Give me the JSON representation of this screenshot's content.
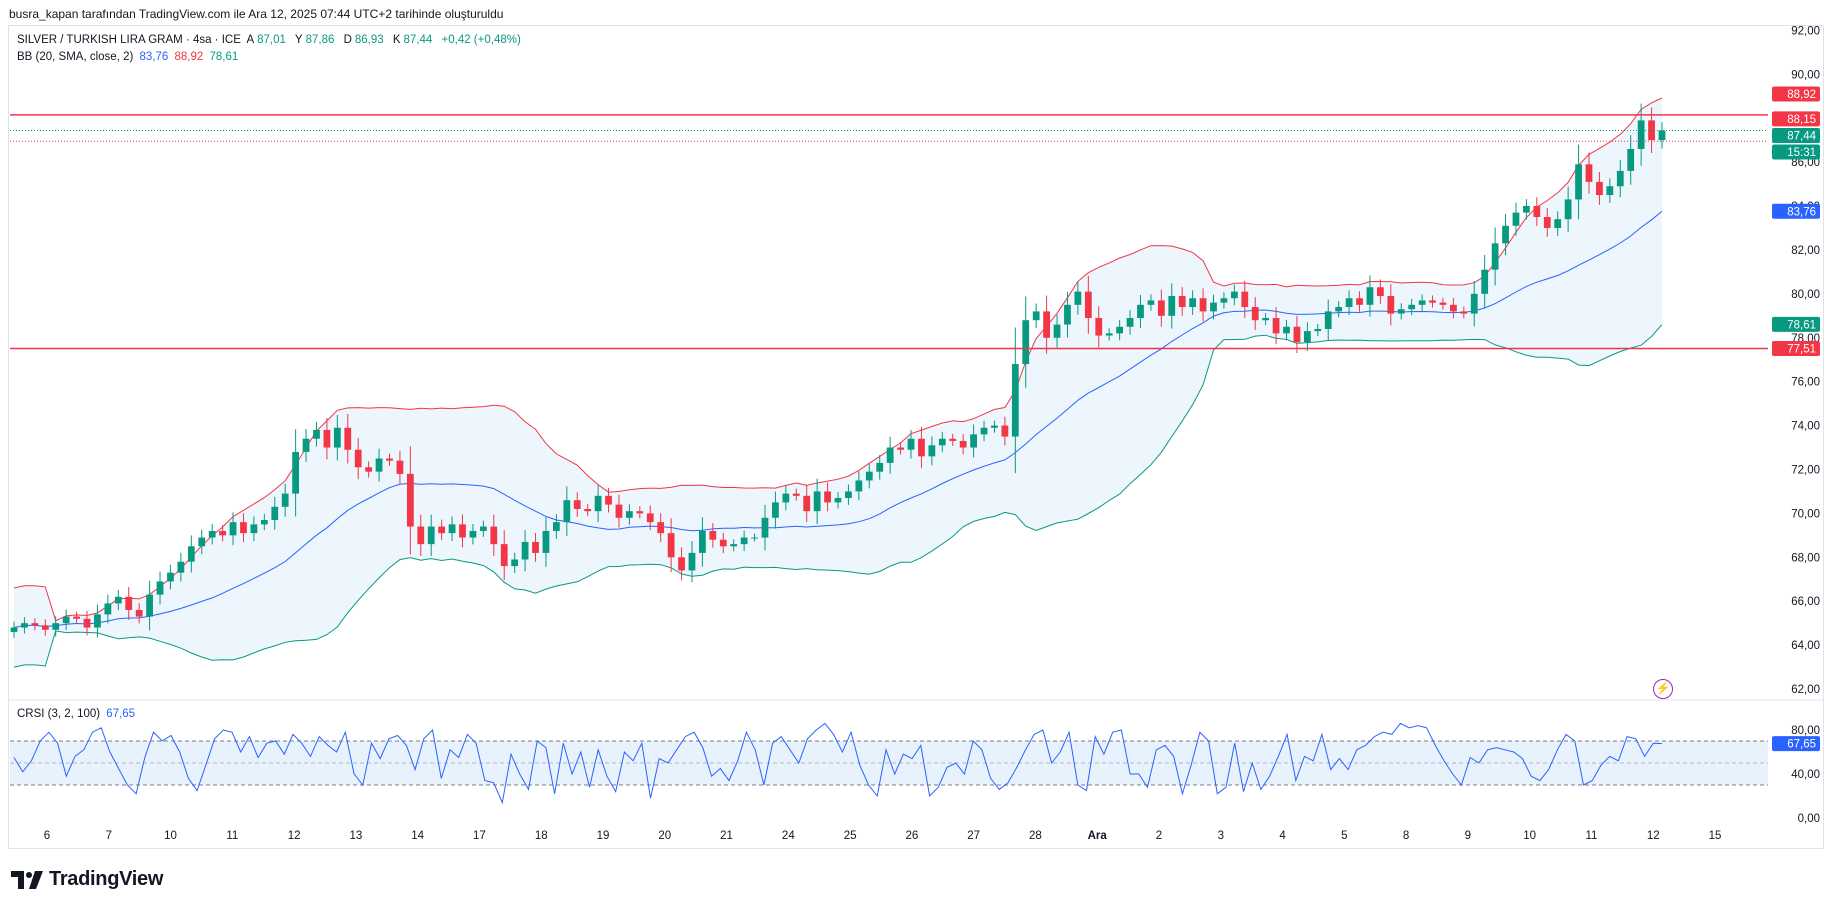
{
  "attribution": "busra_kapan tarafından TradingView.com ile Ara 12, 2025 07:44 UTC+2 tarihinde oluşturuldu",
  "legend": {
    "symbol": "SILVER / TURKISH LIRA GRAM · 4sa · ICE",
    "open_label": "A",
    "open": "87,01",
    "high_label": "Y",
    "high": "87,86",
    "low_label": "D",
    "low": "86,93",
    "close_label": "K",
    "close": "87,44",
    "change": "+0,42 (+0,48%)",
    "bb_label": "BB (20, SMA, close, 2)",
    "bb_basis": "83,76",
    "bb_upper": "88,92",
    "bb_lower": "78,61"
  },
  "crsi_legend": {
    "label": "CRSI (3, 2, 100)",
    "value": "67,65"
  },
  "logo_text": "TradingView",
  "colors": {
    "up": "#089981",
    "down": "#f23645",
    "basis": "#2962ff",
    "upper": "#f23645",
    "lower": "#089981",
    "band_fill": "#e8f2fc",
    "crsi": "#2962ff"
  },
  "chart_data": [
    {
      "type": "candlestick",
      "title": "SILVER / TURKISH LIRA GRAM · 4sa · ICE",
      "ylim": [
        61.5,
        92.2
      ],
      "y_ticks": [
        "62,00",
        "64,00",
        "66,00",
        "68,00",
        "70,00",
        "72,00",
        "74,00",
        "76,00",
        "78,00",
        "80,00",
        "82,00",
        "84,00",
        "86,00",
        "88,00",
        "90,00",
        "92,00"
      ],
      "x_ticks": [
        "6",
        "7",
        "10",
        "11",
        "12",
        "13",
        "14",
        "17",
        "18",
        "19",
        "20",
        "21",
        "24",
        "25",
        "26",
        "27",
        "28",
        "Ara",
        "2",
        "3",
        "4",
        "5",
        "8",
        "9",
        "10",
        "11",
        "12",
        "15"
      ],
      "candles_close": [
        64.8,
        65.0,
        64.9,
        64.7,
        65.0,
        65.3,
        65.2,
        64.8,
        65.4,
        65.9,
        66.2,
        65.6,
        65.3,
        66.3,
        66.9,
        67.3,
        67.8,
        68.5,
        68.9,
        69.2,
        69.0,
        69.6,
        69.1,
        69.5,
        69.7,
        70.3,
        70.9,
        72.8,
        73.4,
        73.8,
        73.0,
        73.9,
        72.9,
        72.1,
        71.9,
        72.5,
        72.4,
        71.8,
        69.4,
        68.6,
        69.4,
        69.1,
        69.5,
        68.9,
        69.2,
        69.4,
        68.6,
        67.6,
        67.9,
        68.7,
        68.2,
        69.2,
        69.6,
        70.6,
        70.2,
        70.1,
        70.8,
        70.4,
        69.8,
        70.1,
        70.0,
        69.6,
        69.1,
        68.0,
        67.4,
        68.2,
        69.2,
        68.8,
        68.5,
        68.6,
        68.9,
        68.9,
        69.8,
        70.5,
        70.9,
        70.8,
        70.1,
        71.0,
        70.5,
        70.7,
        71.0,
        71.5,
        71.9,
        72.3,
        73.0,
        72.9,
        73.4,
        72.6,
        73.1,
        73.4,
        73.3,
        73.0,
        73.6,
        73.9,
        74.0,
        73.5,
        76.8,
        78.8,
        79.2,
        78.0,
        78.6,
        79.5,
        80.1,
        78.9,
        78.1,
        78.2,
        78.5,
        78.9,
        79.5,
        79.7,
        79.0,
        79.9,
        79.4,
        79.8,
        79.2,
        79.6,
        79.8,
        80.1,
        79.4,
        78.8,
        78.9,
        78.2,
        78.5,
        77.8,
        78.3,
        78.4,
        79.2,
        79.4,
        79.8,
        79.5,
        80.3,
        79.9,
        79.1,
        79.3,
        79.5,
        79.7,
        79.6,
        79.5,
        79.2,
        79.1,
        80.0,
        81.1,
        82.3,
        83.1,
        83.7,
        84.0,
        83.5,
        83.0,
        83.4,
        84.3,
        85.9,
        85.1,
        84.5,
        84.9,
        85.6,
        86.6,
        87.9,
        87.0,
        87.44
      ],
      "bb_basis_last": 83.76,
      "bb_upper_last": 88.92,
      "bb_lower_last": 78.61,
      "horizontal_lines": [
        88.15,
        77.51
      ],
      "price_labels": [
        "88,92",
        "88,15",
        "87,44",
        "15:31",
        "83,76",
        "78,61",
        "77,51"
      ]
    },
    {
      "type": "line",
      "title": "CRSI (3, 2, 100)",
      "ylim": [
        0,
        100
      ],
      "y_ticks": [
        "0,00",
        "40,00",
        "80,00"
      ],
      "bands": [
        30,
        70
      ],
      "values": [
        55,
        42,
        52,
        70,
        78,
        68,
        38,
        56,
        62,
        78,
        82,
        60,
        45,
        30,
        22,
        55,
        78,
        70,
        75,
        60,
        36,
        25,
        48,
        72,
        80,
        78,
        60,
        74,
        55,
        68,
        70,
        58,
        76,
        68,
        56,
        74,
        66,
        60,
        78,
        40,
        30,
        68,
        54,
        72,
        75,
        66,
        44,
        72,
        80,
        36,
        62,
        55,
        76,
        68,
        34,
        32,
        14,
        58,
        40,
        26,
        70,
        64,
        22,
        68,
        40,
        60,
        28,
        62,
        38,
        24,
        60,
        52,
        68,
        18,
        54,
        50,
        62,
        74,
        78,
        64,
        38,
        45,
        34,
        52,
        78,
        62,
        30,
        68,
        74,
        62,
        50,
        72,
        80,
        86,
        76,
        60,
        78,
        48,
        30,
        20,
        62,
        40,
        58,
        54,
        66,
        20,
        28,
        46,
        50,
        40,
        70,
        62,
        36,
        26,
        32,
        46,
        62,
        76,
        80,
        50,
        60,
        78,
        30,
        25,
        74,
        58,
        78,
        80,
        40,
        40,
        28,
        62,
        66,
        56,
        22,
        48,
        78,
        70,
        22,
        28,
        68,
        24,
        50,
        26,
        38,
        56,
        76,
        34,
        56,
        52,
        76,
        44,
        54,
        44,
        62,
        66,
        74,
        78,
        76,
        86,
        82,
        84,
        82,
        66,
        52,
        40,
        30,
        55,
        50,
        62,
        64,
        62,
        60,
        54,
        38,
        34,
        44,
        62,
        76,
        70,
        30,
        34,
        48,
        56,
        52,
        74,
        72,
        56,
        68,
        67.65
      ],
      "last": 67.65
    }
  ]
}
